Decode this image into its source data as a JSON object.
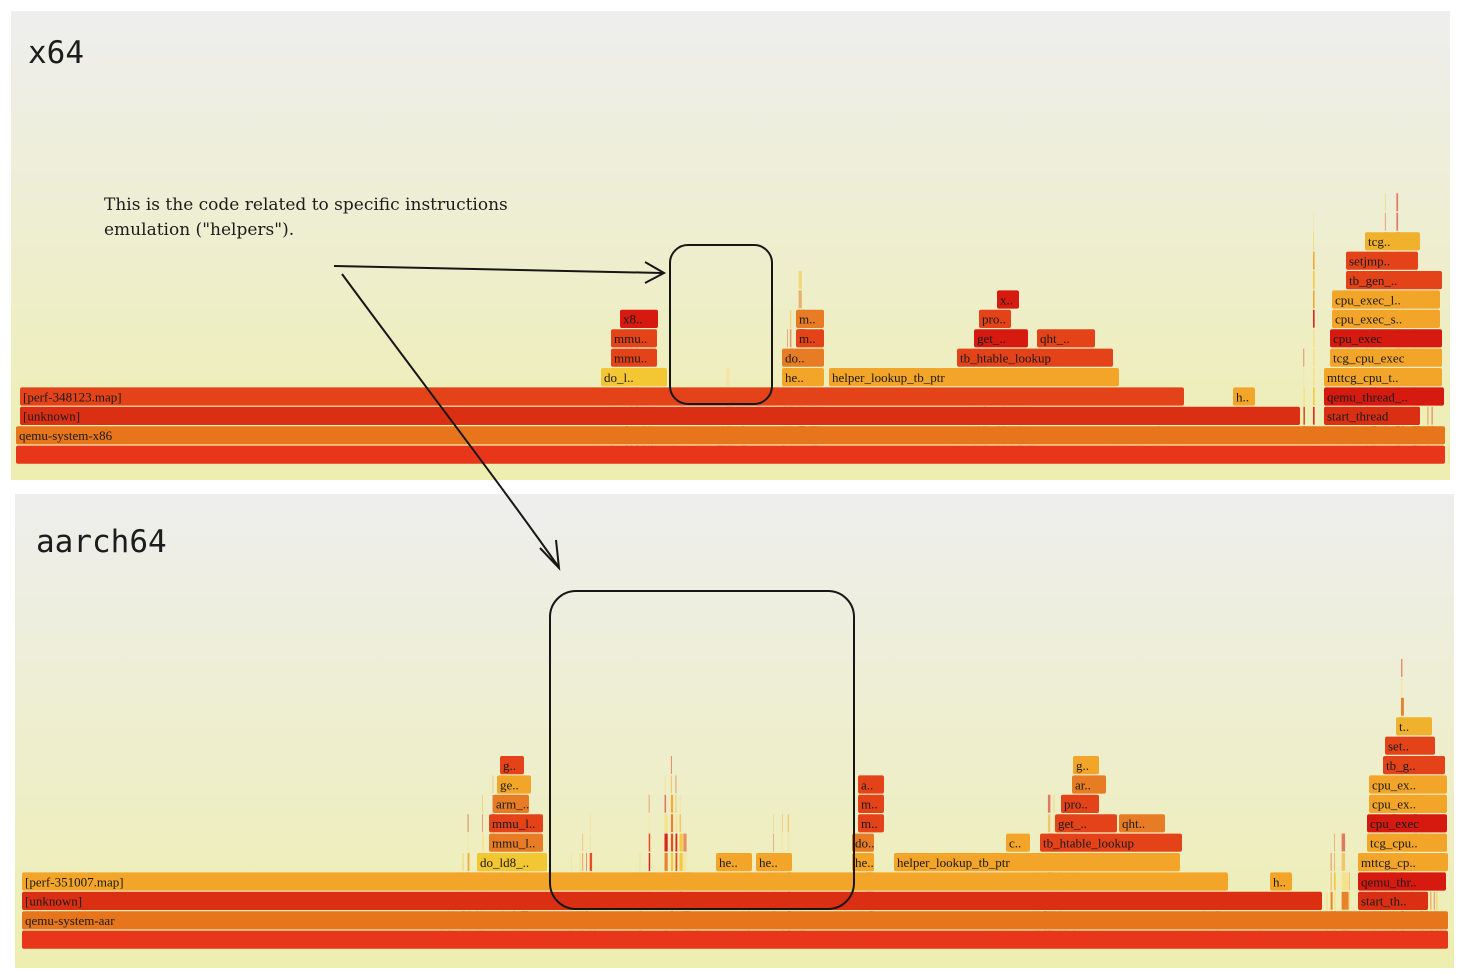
{
  "annotation": {
    "note_line1": "This is the code related to specific instructions",
    "note_line2": "emulation (\"helpers\")."
  },
  "chart_data": [
    {
      "type": "flamegraph",
      "title": "x64",
      "frames": [
        {
          "label": "",
          "color": "#e8361a"
        },
        {
          "label": "qemu-system-x86",
          "color": "#e6751c"
        },
        {
          "label": "[unknown]",
          "color": "#db2f14"
        },
        {
          "label": "[perf-348123.map]",
          "color": "#e4431a"
        },
        {
          "label": "start_thread",
          "color": "#db2f14"
        },
        {
          "label": "qemu_thread_..",
          "color": "#d61a10"
        },
        {
          "label": "mttcg_cpu_t..",
          "color": "#f3a52a"
        },
        {
          "label": "tcg_cpu_exec",
          "color": "#f3a52a"
        },
        {
          "label": "cpu_exec",
          "color": "#d61a10"
        },
        {
          "label": "cpu_exec_s..",
          "color": "#f3a52a"
        },
        {
          "label": "cpu_exec_l..",
          "color": "#f3a52a"
        },
        {
          "label": "tb_gen_..",
          "color": "#e4431a"
        },
        {
          "label": "setjmp..",
          "color": "#e4431a"
        },
        {
          "label": "tcg..",
          "color": "#f0b12c"
        },
        {
          "label": "h..",
          "color": "#f3a52a"
        },
        {
          "label": "helper_lookup_tb_ptr",
          "color": "#f3a52a"
        },
        {
          "label": "he..",
          "color": "#f3a52a"
        },
        {
          "label": "do..",
          "color": "#e77c24"
        },
        {
          "label": "m..",
          "color": "#e4431a"
        },
        {
          "label": "m..",
          "color": "#e77c24"
        },
        {
          "label": "tb_htable_lookup",
          "color": "#e4431a"
        },
        {
          "label": "get_..",
          "color": "#d61a10"
        },
        {
          "label": "qht_..",
          "color": "#e4431a"
        },
        {
          "label": "pro..",
          "color": "#e4431a"
        },
        {
          "label": "x..",
          "color": "#d61a10"
        },
        {
          "label": "do_l..",
          "color": "#f3c634"
        },
        {
          "label": "mmu..",
          "color": "#e4431a"
        },
        {
          "label": "mmu..",
          "color": "#e4431a"
        },
        {
          "label": "x8..",
          "color": "#d61a10"
        }
      ]
    },
    {
      "type": "flamegraph",
      "title": "aarch64",
      "frames": [
        {
          "label": "",
          "color": "#e8361a"
        },
        {
          "label": "qemu-system-aar",
          "color": "#e6751c"
        },
        {
          "label": "[unknown]",
          "color": "#db2f14"
        },
        {
          "label": "[perf-351007.map]",
          "color": "#f3a52a"
        },
        {
          "label": "start_th..",
          "color": "#db2f14"
        },
        {
          "label": "qemu_thr..",
          "color": "#d61a10"
        },
        {
          "label": "mttcg_cp..",
          "color": "#f3a52a"
        },
        {
          "label": "tcg_cpu..",
          "color": "#f3a52a"
        },
        {
          "label": "cpu_exec",
          "color": "#d61a10"
        },
        {
          "label": "cpu_ex..",
          "color": "#f3a52a"
        },
        {
          "label": "cpu_ex..",
          "color": "#f3a52a"
        },
        {
          "label": "tb_g..",
          "color": "#e4431a"
        },
        {
          "label": "set..",
          "color": "#e4431a"
        },
        {
          "label": "t..",
          "color": "#f0b12c"
        },
        {
          "label": "h..",
          "color": "#f3a52a"
        },
        {
          "label": "helper_lookup_tb_ptr",
          "color": "#f3a52a"
        },
        {
          "label": "he..",
          "color": "#f3a52a"
        },
        {
          "label": "do..",
          "color": "#e77c24"
        },
        {
          "label": "m..",
          "color": "#e4431a"
        },
        {
          "label": "m..",
          "color": "#e4431a"
        },
        {
          "label": "a..",
          "color": "#e4431a"
        },
        {
          "label": "tb_htable_lookup",
          "color": "#e4431a"
        },
        {
          "label": "c..",
          "color": "#f3a52a"
        },
        {
          "label": "get_..",
          "color": "#e4431a"
        },
        {
          "label": "qht..",
          "color": "#e77c24"
        },
        {
          "label": "pro..",
          "color": "#e4431a"
        },
        {
          "label": "ar..",
          "color": "#e77c24"
        },
        {
          "label": "g..",
          "color": "#f3a52a"
        },
        {
          "label": "do_ld8_..",
          "color": "#f3c634"
        },
        {
          "label": "he..",
          "color": "#f3a52a"
        },
        {
          "label": "he..",
          "color": "#f3a52a"
        },
        {
          "label": "mmu_l..",
          "color": "#e77c24"
        },
        {
          "label": "mmu_l..",
          "color": "#e4431a"
        },
        {
          "label": "arm_..",
          "color": "#e77c24"
        },
        {
          "label": "ge..",
          "color": "#f3a52a"
        },
        {
          "label": "g..",
          "color": "#e4431a"
        }
      ]
    }
  ]
}
